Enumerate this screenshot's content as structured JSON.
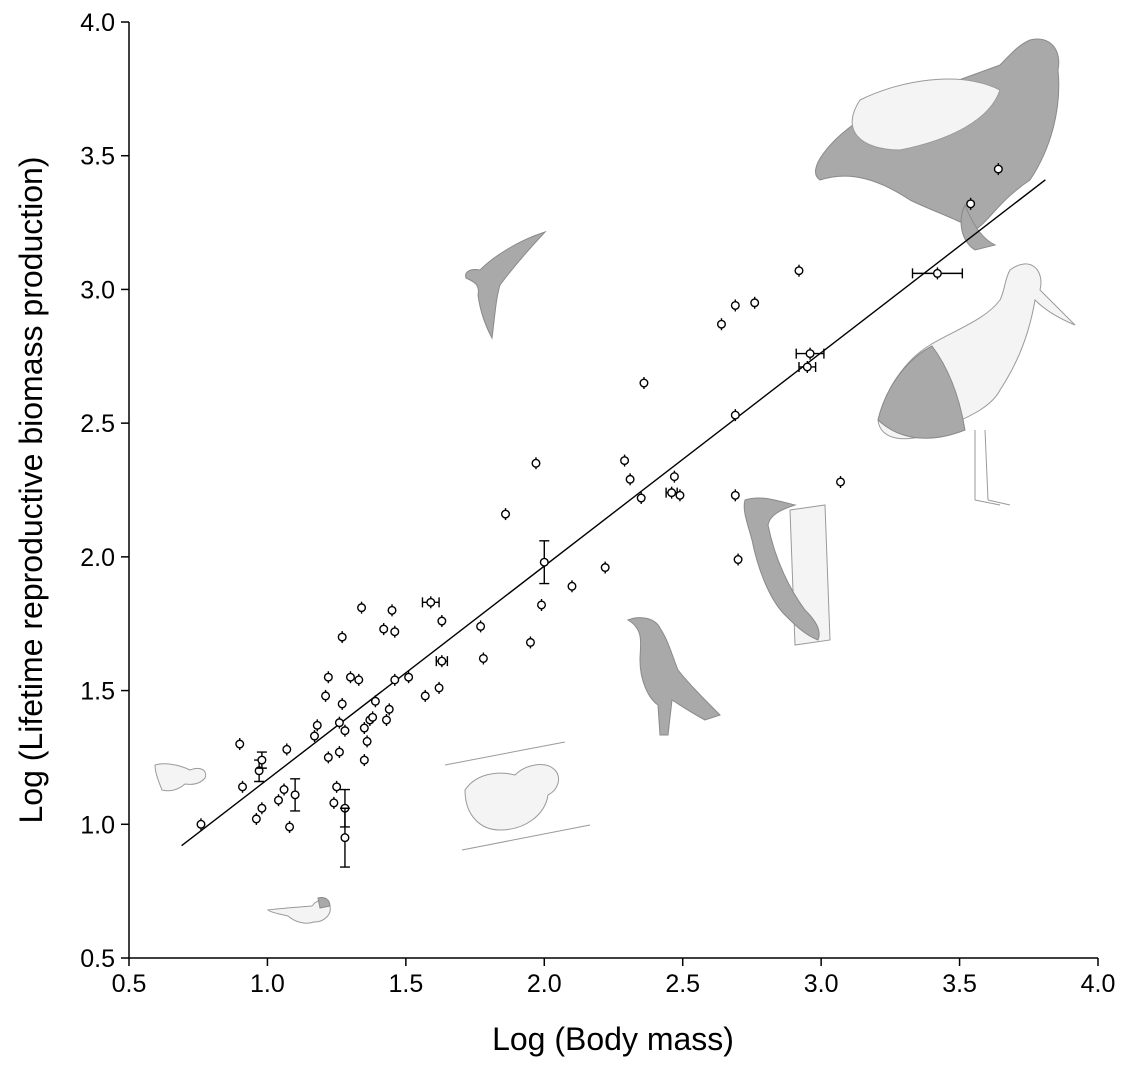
{
  "chart_data": {
    "type": "scatter",
    "title": "",
    "xlabel": "Log (Body mass)",
    "ylabel": "Log (Lifetime reproductive biomass production)",
    "xlim": [
      0.5,
      4.0
    ],
    "ylim": [
      0.5,
      4.0
    ],
    "x_ticks": [
      "0.5",
      "1.0",
      "1.5",
      "2.0",
      "2.5",
      "3.0",
      "3.5",
      "4.0"
    ],
    "y_ticks": [
      "0.5",
      "1.0",
      "1.5",
      "2.0",
      "2.5",
      "3.0",
      "3.5",
      "4.0"
    ],
    "grid": false,
    "legend": "none",
    "regression_line": {
      "x": [
        0.69,
        3.81
      ],
      "y": [
        0.92,
        3.41
      ]
    },
    "points": [
      {
        "x": 0.76,
        "y": 1.0
      },
      {
        "x": 0.9,
        "y": 1.3
      },
      {
        "x": 0.91,
        "y": 1.14
      },
      {
        "x": 0.96,
        "y": 1.02
      },
      {
        "x": 0.97,
        "y": 1.2,
        "yerr": 0.04
      },
      {
        "x": 0.98,
        "y": 1.24,
        "yerr": 0.03
      },
      {
        "x": 0.98,
        "y": 1.06
      },
      {
        "x": 1.04,
        "y": 1.09
      },
      {
        "x": 1.06,
        "y": 1.13
      },
      {
        "x": 1.07,
        "y": 1.28
      },
      {
        "x": 1.08,
        "y": 0.99
      },
      {
        "x": 1.1,
        "y": 1.11,
        "yerr": 0.06
      },
      {
        "x": 1.17,
        "y": 1.33
      },
      {
        "x": 1.18,
        "y": 1.37
      },
      {
        "x": 1.21,
        "y": 1.48
      },
      {
        "x": 1.22,
        "y": 1.55
      },
      {
        "x": 1.22,
        "y": 1.25
      },
      {
        "x": 1.24,
        "y": 1.08
      },
      {
        "x": 1.25,
        "y": 1.14
      },
      {
        "x": 1.26,
        "y": 1.27
      },
      {
        "x": 1.26,
        "y": 1.38
      },
      {
        "x": 1.27,
        "y": 1.45
      },
      {
        "x": 1.27,
        "y": 1.7
      },
      {
        "x": 1.28,
        "y": 1.35
      },
      {
        "x": 1.28,
        "y": 1.06,
        "yerr": 0.07
      },
      {
        "x": 1.28,
        "y": 0.95,
        "yerr": 0.11
      },
      {
        "x": 1.3,
        "y": 1.55
      },
      {
        "x": 1.33,
        "y": 1.54
      },
      {
        "x": 1.34,
        "y": 1.81
      },
      {
        "x": 1.35,
        "y": 1.36
      },
      {
        "x": 1.35,
        "y": 1.24
      },
      {
        "x": 1.36,
        "y": 1.31
      },
      {
        "x": 1.37,
        "y": 1.39
      },
      {
        "x": 1.38,
        "y": 1.4
      },
      {
        "x": 1.39,
        "y": 1.46
      },
      {
        "x": 1.42,
        "y": 1.73
      },
      {
        "x": 1.43,
        "y": 1.39
      },
      {
        "x": 1.44,
        "y": 1.43
      },
      {
        "x": 1.45,
        "y": 1.8
      },
      {
        "x": 1.46,
        "y": 1.72
      },
      {
        "x": 1.46,
        "y": 1.54
      },
      {
        "x": 1.51,
        "y": 1.55
      },
      {
        "x": 1.57,
        "y": 1.48
      },
      {
        "x": 1.59,
        "y": 1.83,
        "xerr": 0.03
      },
      {
        "x": 1.62,
        "y": 1.51
      },
      {
        "x": 1.63,
        "y": 1.61,
        "xerr": 0.02
      },
      {
        "x": 1.63,
        "y": 1.76
      },
      {
        "x": 1.77,
        "y": 1.74
      },
      {
        "x": 1.78,
        "y": 1.62
      },
      {
        "x": 1.86,
        "y": 2.16
      },
      {
        "x": 1.95,
        "y": 1.68
      },
      {
        "x": 1.97,
        "y": 2.35
      },
      {
        "x": 1.99,
        "y": 1.82
      },
      {
        "x": 2.0,
        "y": 1.98,
        "yerr": 0.08
      },
      {
        "x": 2.1,
        "y": 1.89
      },
      {
        "x": 2.22,
        "y": 1.96
      },
      {
        "x": 2.29,
        "y": 2.36
      },
      {
        "x": 2.31,
        "y": 2.29
      },
      {
        "x": 2.35,
        "y": 2.22
      },
      {
        "x": 2.36,
        "y": 2.65
      },
      {
        "x": 2.46,
        "y": 2.24,
        "xerr": 0.02
      },
      {
        "x": 2.47,
        "y": 2.3
      },
      {
        "x": 2.49,
        "y": 2.23
      },
      {
        "x": 2.64,
        "y": 2.87
      },
      {
        "x": 2.69,
        "y": 2.94
      },
      {
        "x": 2.69,
        "y": 2.23
      },
      {
        "x": 2.69,
        "y": 2.53
      },
      {
        "x": 2.7,
        "y": 1.99
      },
      {
        "x": 2.76,
        "y": 2.95
      },
      {
        "x": 2.92,
        "y": 3.07
      },
      {
        "x": 2.95,
        "y": 2.71,
        "xerr": 0.03
      },
      {
        "x": 2.96,
        "y": 2.76,
        "xerr": 0.05
      },
      {
        "x": 3.07,
        "y": 2.28
      },
      {
        "x": 3.42,
        "y": 3.06,
        "xerr": 0.09
      },
      {
        "x": 3.54,
        "y": 3.32
      },
      {
        "x": 3.64,
        "y": 3.45
      }
    ],
    "illustrations": [
      "goldcrest-icon",
      "tit-icon",
      "swift-icon",
      "quail-icon",
      "crow-icon",
      "woodpecker-icon",
      "stork-icon",
      "eagle-icon"
    ]
  }
}
